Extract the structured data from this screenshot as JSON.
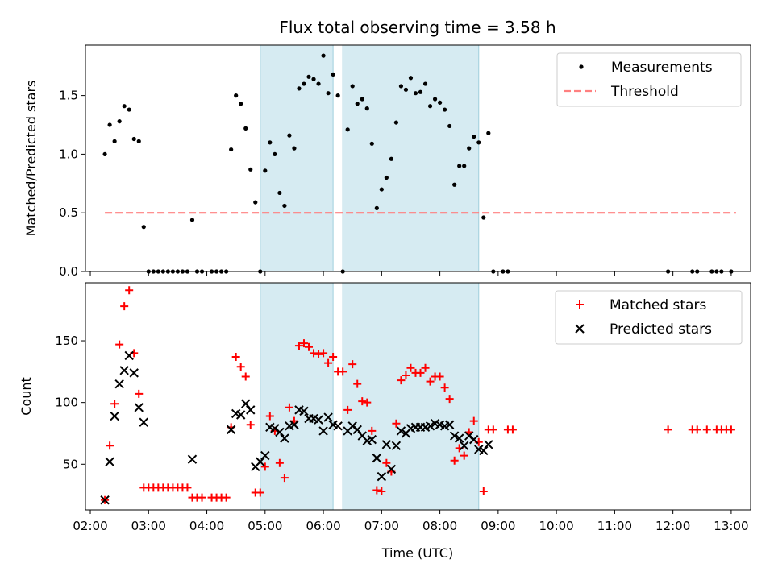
{
  "figure": {
    "title": "Flux total observing time = 3.58 h",
    "xlabel": "Time (UTC)"
  },
  "chart_data": [
    {
      "type": "scatter",
      "panel": "top",
      "title": "Flux total observing time = 3.58 h",
      "xlabel": "",
      "ylabel": "Matched/Predicted stars",
      "xlim": [
        "01:55",
        "13:20"
      ],
      "ylim": [
        0,
        1.93
      ],
      "x_ticks": [
        "02:00",
        "03:00",
        "04:00",
        "05:00",
        "06:00",
        "07:00",
        "08:00",
        "09:00",
        "10:00",
        "11:00",
        "12:00",
        "13:00"
      ],
      "y_ticks": [
        "0.0",
        "0.5",
        "1.0",
        "1.5"
      ],
      "y_tick_values": [
        0,
        0.5,
        1.0,
        1.5
      ],
      "legend_position": "top-right",
      "shaded_intervals": [
        [
          "04:55",
          "06:10"
        ],
        [
          "06:20",
          "08:40"
        ]
      ],
      "series": [
        {
          "name": "Measurements",
          "style": "dot",
          "color": "#000000",
          "points": [
            [
              "02:15",
              1.0
            ],
            [
              "02:20",
              1.25
            ],
            [
              "02:25",
              1.11
            ],
            [
              "02:30",
              1.28
            ],
            [
              "02:35",
              1.41
            ],
            [
              "02:40",
              1.38
            ],
            [
              "02:45",
              1.13
            ],
            [
              "02:50",
              1.11
            ],
            [
              "02:55",
              0.38
            ],
            [
              "03:00",
              0
            ],
            [
              "03:05",
              0
            ],
            [
              "03:10",
              0
            ],
            [
              "03:15",
              0
            ],
            [
              "03:20",
              0
            ],
            [
              "03:25",
              0
            ],
            [
              "03:30",
              0
            ],
            [
              "03:35",
              0
            ],
            [
              "03:40",
              0
            ],
            [
              "03:45",
              0.44
            ],
            [
              "03:50",
              0
            ],
            [
              "03:55",
              0
            ],
            [
              "04:05",
              0
            ],
            [
              "04:10",
              0
            ],
            [
              "04:15",
              0
            ],
            [
              "04:20",
              0
            ],
            [
              "04:25",
              1.04
            ],
            [
              "04:30",
              1.5
            ],
            [
              "04:35",
              1.43
            ],
            [
              "04:40",
              1.22
            ],
            [
              "04:45",
              0.87
            ],
            [
              "04:50",
              0.59
            ],
            [
              "04:55",
              0
            ],
            [
              "05:00",
              0.86
            ],
            [
              "05:05",
              1.1
            ],
            [
              "05:10",
              1.0
            ],
            [
              "05:15",
              0.67
            ],
            [
              "05:20",
              0.56
            ],
            [
              "05:25",
              1.16
            ],
            [
              "05:30",
              1.05
            ],
            [
              "05:35",
              1.56
            ],
            [
              "05:40",
              1.6
            ],
            [
              "05:45",
              1.66
            ],
            [
              "05:50",
              1.64
            ],
            [
              "05:55",
              1.6
            ],
            [
              "06:00",
              1.84
            ],
            [
              "06:05",
              1.52
            ],
            [
              "06:10",
              1.68
            ],
            [
              "06:15",
              1.5
            ],
            [
              "06:20",
              0
            ],
            [
              "06:25",
              1.21
            ],
            [
              "06:30",
              1.58
            ],
            [
              "06:35",
              1.43
            ],
            [
              "06:40",
              1.47
            ],
            [
              "06:45",
              1.39
            ],
            [
              "06:50",
              1.09
            ],
            [
              "06:55",
              0.54
            ],
            [
              "07:00",
              0.7
            ],
            [
              "07:05",
              0.8
            ],
            [
              "07:10",
              0.96
            ],
            [
              "07:15",
              1.27
            ],
            [
              "07:20",
              1.58
            ],
            [
              "07:25",
              1.55
            ],
            [
              "07:30",
              1.65
            ],
            [
              "07:35",
              1.52
            ],
            [
              "07:40",
              1.53
            ],
            [
              "07:45",
              1.6
            ],
            [
              "07:50",
              1.41
            ],
            [
              "07:55",
              1.47
            ],
            [
              "08:00",
              1.44
            ],
            [
              "08:05",
              1.38
            ],
            [
              "08:10",
              1.24
            ],
            [
              "08:15",
              0.74
            ],
            [
              "08:20",
              0.9
            ],
            [
              "08:25",
              0.9
            ],
            [
              "08:30",
              1.05
            ],
            [
              "08:35",
              1.15
            ],
            [
              "08:40",
              1.1
            ],
            [
              "08:45",
              0.46
            ],
            [
              "08:50",
              1.18
            ],
            [
              "08:55",
              0
            ],
            [
              "09:05",
              0
            ],
            [
              "09:10",
              0
            ],
            [
              "11:55",
              0
            ],
            [
              "12:20",
              0
            ],
            [
              "12:25",
              0
            ],
            [
              "12:40",
              0
            ],
            [
              "12:45",
              0
            ],
            [
              "12:50",
              0
            ],
            [
              "13:00",
              0
            ]
          ]
        },
        {
          "name": "Threshold",
          "style": "dashed-line",
          "color": "#ff8080",
          "points": [
            [
              "02:15",
              0.5
            ],
            [
              "13:05",
              0.5
            ]
          ]
        }
      ]
    },
    {
      "type": "scatter",
      "panel": "bottom",
      "xlabel": "Time (UTC)",
      "ylabel": "Count",
      "xlim": [
        "01:55",
        "13:20"
      ],
      "ylim": [
        13,
        197
      ],
      "x_ticks": [
        "02:00",
        "03:00",
        "04:00",
        "05:00",
        "06:00",
        "07:00",
        "08:00",
        "09:00",
        "10:00",
        "11:00",
        "12:00",
        "13:00"
      ],
      "y_ticks": [
        "50",
        "100",
        "150"
      ],
      "y_tick_values": [
        50,
        100,
        150
      ],
      "legend_position": "top-right",
      "shaded_intervals": [
        [
          "04:55",
          "06:10"
        ],
        [
          "06:20",
          "08:40"
        ]
      ],
      "series": [
        {
          "name": "Matched stars",
          "style": "plus",
          "color": "#ff0000",
          "points": [
            [
              "02:15",
              21
            ],
            [
              "02:20",
              65
            ],
            [
              "02:25",
              99
            ],
            [
              "02:30",
              147
            ],
            [
              "02:35",
              178
            ],
            [
              "02:40",
              191
            ],
            [
              "02:45",
              140
            ],
            [
              "02:50",
              107
            ],
            [
              "02:55",
              31
            ],
            [
              "03:00",
              31
            ],
            [
              "03:05",
              31
            ],
            [
              "03:10",
              31
            ],
            [
              "03:15",
              31
            ],
            [
              "03:20",
              31
            ],
            [
              "03:25",
              31
            ],
            [
              "03:30",
              31
            ],
            [
              "03:35",
              31
            ],
            [
              "03:40",
              31
            ],
            [
              "03:45",
              23
            ],
            [
              "03:50",
              23
            ],
            [
              "03:55",
              23
            ],
            [
              "04:05",
              23
            ],
            [
              "04:10",
              23
            ],
            [
              "04:15",
              23
            ],
            [
              "04:20",
              23
            ],
            [
              "04:25",
              80
            ],
            [
              "04:30",
              137
            ],
            [
              "04:35",
              129
            ],
            [
              "04:40",
              121
            ],
            [
              "04:45",
              82
            ],
            [
              "04:50",
              27
            ],
            [
              "04:55",
              27
            ],
            [
              "05:00",
              48
            ],
            [
              "05:05",
              89
            ],
            [
              "05:10",
              77
            ],
            [
              "05:15",
              51
            ],
            [
              "05:20",
              39
            ],
            [
              "05:25",
              96
            ],
            [
              "05:30",
              85
            ],
            [
              "05:35",
              146
            ],
            [
              "05:40",
              148
            ],
            [
              "05:45",
              145
            ],
            [
              "05:50",
              140
            ],
            [
              "05:55",
              139
            ],
            [
              "06:00",
              140
            ],
            [
              "06:05",
              132
            ],
            [
              "06:10",
              137
            ],
            [
              "06:15",
              125
            ],
            [
              "06:20",
              125
            ],
            [
              "06:25",
              94
            ],
            [
              "06:30",
              131
            ],
            [
              "06:35",
              115
            ],
            [
              "06:40",
              101
            ],
            [
              "06:45",
              100
            ],
            [
              "06:50",
              77
            ],
            [
              "06:55",
              29
            ],
            [
              "07:00",
              28
            ],
            [
              "07:05",
              51
            ],
            [
              "07:10",
              44
            ],
            [
              "07:15",
              83
            ],
            [
              "07:20",
              118
            ],
            [
              "07:25",
              122
            ],
            [
              "07:30",
              128
            ],
            [
              "07:35",
              124
            ],
            [
              "07:40",
              124
            ],
            [
              "07:45",
              128
            ],
            [
              "07:50",
              117
            ],
            [
              "07:55",
              121
            ],
            [
              "08:00",
              121
            ],
            [
              "08:05",
              112
            ],
            [
              "08:10",
              103
            ],
            [
              "08:15",
              53
            ],
            [
              "08:20",
              63
            ],
            [
              "08:25",
              57
            ],
            [
              "08:30",
              76
            ],
            [
              "08:35",
              85
            ],
            [
              "08:40",
              68
            ],
            [
              "08:45",
              28
            ],
            [
              "08:50",
              78
            ],
            [
              "08:55",
              78
            ],
            [
              "09:10",
              78
            ],
            [
              "09:15",
              78
            ],
            [
              "11:55",
              78
            ],
            [
              "12:20",
              78
            ],
            [
              "12:25",
              78
            ],
            [
              "12:35",
              78
            ],
            [
              "12:45",
              78
            ],
            [
              "12:50",
              78
            ],
            [
              "12:55",
              78
            ],
            [
              "13:00",
              78
            ]
          ]
        },
        {
          "name": "Predicted stars",
          "style": "x",
          "color": "#000000",
          "points": [
            [
              "02:15",
              21
            ],
            [
              "02:20",
              52
            ],
            [
              "02:25",
              89
            ],
            [
              "02:30",
              115
            ],
            [
              "02:35",
              126
            ],
            [
              "02:40",
              138
            ],
            [
              "02:45",
              124
            ],
            [
              "02:50",
              96
            ],
            [
              "02:55",
              84
            ],
            [
              "03:45",
              54
            ],
            [
              "04:25",
              78
            ],
            [
              "04:30",
              91
            ],
            [
              "04:35",
              90
            ],
            [
              "04:40",
              99
            ],
            [
              "04:45",
              94
            ],
            [
              "04:50",
              48
            ],
            [
              "04:55",
              52
            ],
            [
              "05:00",
              57
            ],
            [
              "05:05",
              80
            ],
            [
              "05:10",
              79
            ],
            [
              "05:15",
              76
            ],
            [
              "05:20",
              71
            ],
            [
              "05:25",
              81
            ],
            [
              "05:30",
              82
            ],
            [
              "05:35",
              94
            ],
            [
              "05:40",
              93
            ],
            [
              "05:45",
              87
            ],
            [
              "05:50",
              87
            ],
            [
              "05:55",
              86
            ],
            [
              "06:00",
              77
            ],
            [
              "06:05",
              88
            ],
            [
              "06:10",
              82
            ],
            [
              "06:15",
              81
            ],
            [
              "06:25",
              77
            ],
            [
              "06:30",
              81
            ],
            [
              "06:35",
              78
            ],
            [
              "06:40",
              73
            ],
            [
              "06:45",
              69
            ],
            [
              "06:50",
              70
            ],
            [
              "06:55",
              55
            ],
            [
              "07:00",
              40
            ],
            [
              "07:05",
              66
            ],
            [
              "07:10",
              46
            ],
            [
              "07:15",
              65
            ],
            [
              "07:20",
              77
            ],
            [
              "07:25",
              75
            ],
            [
              "07:30",
              79
            ],
            [
              "07:35",
              80
            ],
            [
              "07:40",
              80
            ],
            [
              "07:45",
              80
            ],
            [
              "07:50",
              81
            ],
            [
              "07:55",
              83
            ],
            [
              "08:00",
              82
            ],
            [
              "08:05",
              81
            ],
            [
              "08:10",
              82
            ],
            [
              "08:15",
              73
            ],
            [
              "08:20",
              71
            ],
            [
              "08:25",
              65
            ],
            [
              "08:30",
              73
            ],
            [
              "08:35",
              70
            ],
            [
              "08:40",
              62
            ],
            [
              "08:45",
              61
            ],
            [
              "08:50",
              66
            ]
          ]
        }
      ]
    }
  ]
}
